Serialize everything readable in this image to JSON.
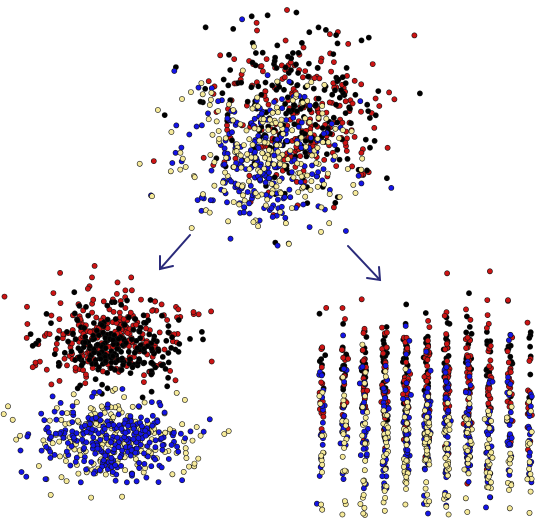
{
  "point_colors": [
    "#cc1414",
    "#000000",
    "#1414e6",
    "#f6ea9a"
  ]
}
